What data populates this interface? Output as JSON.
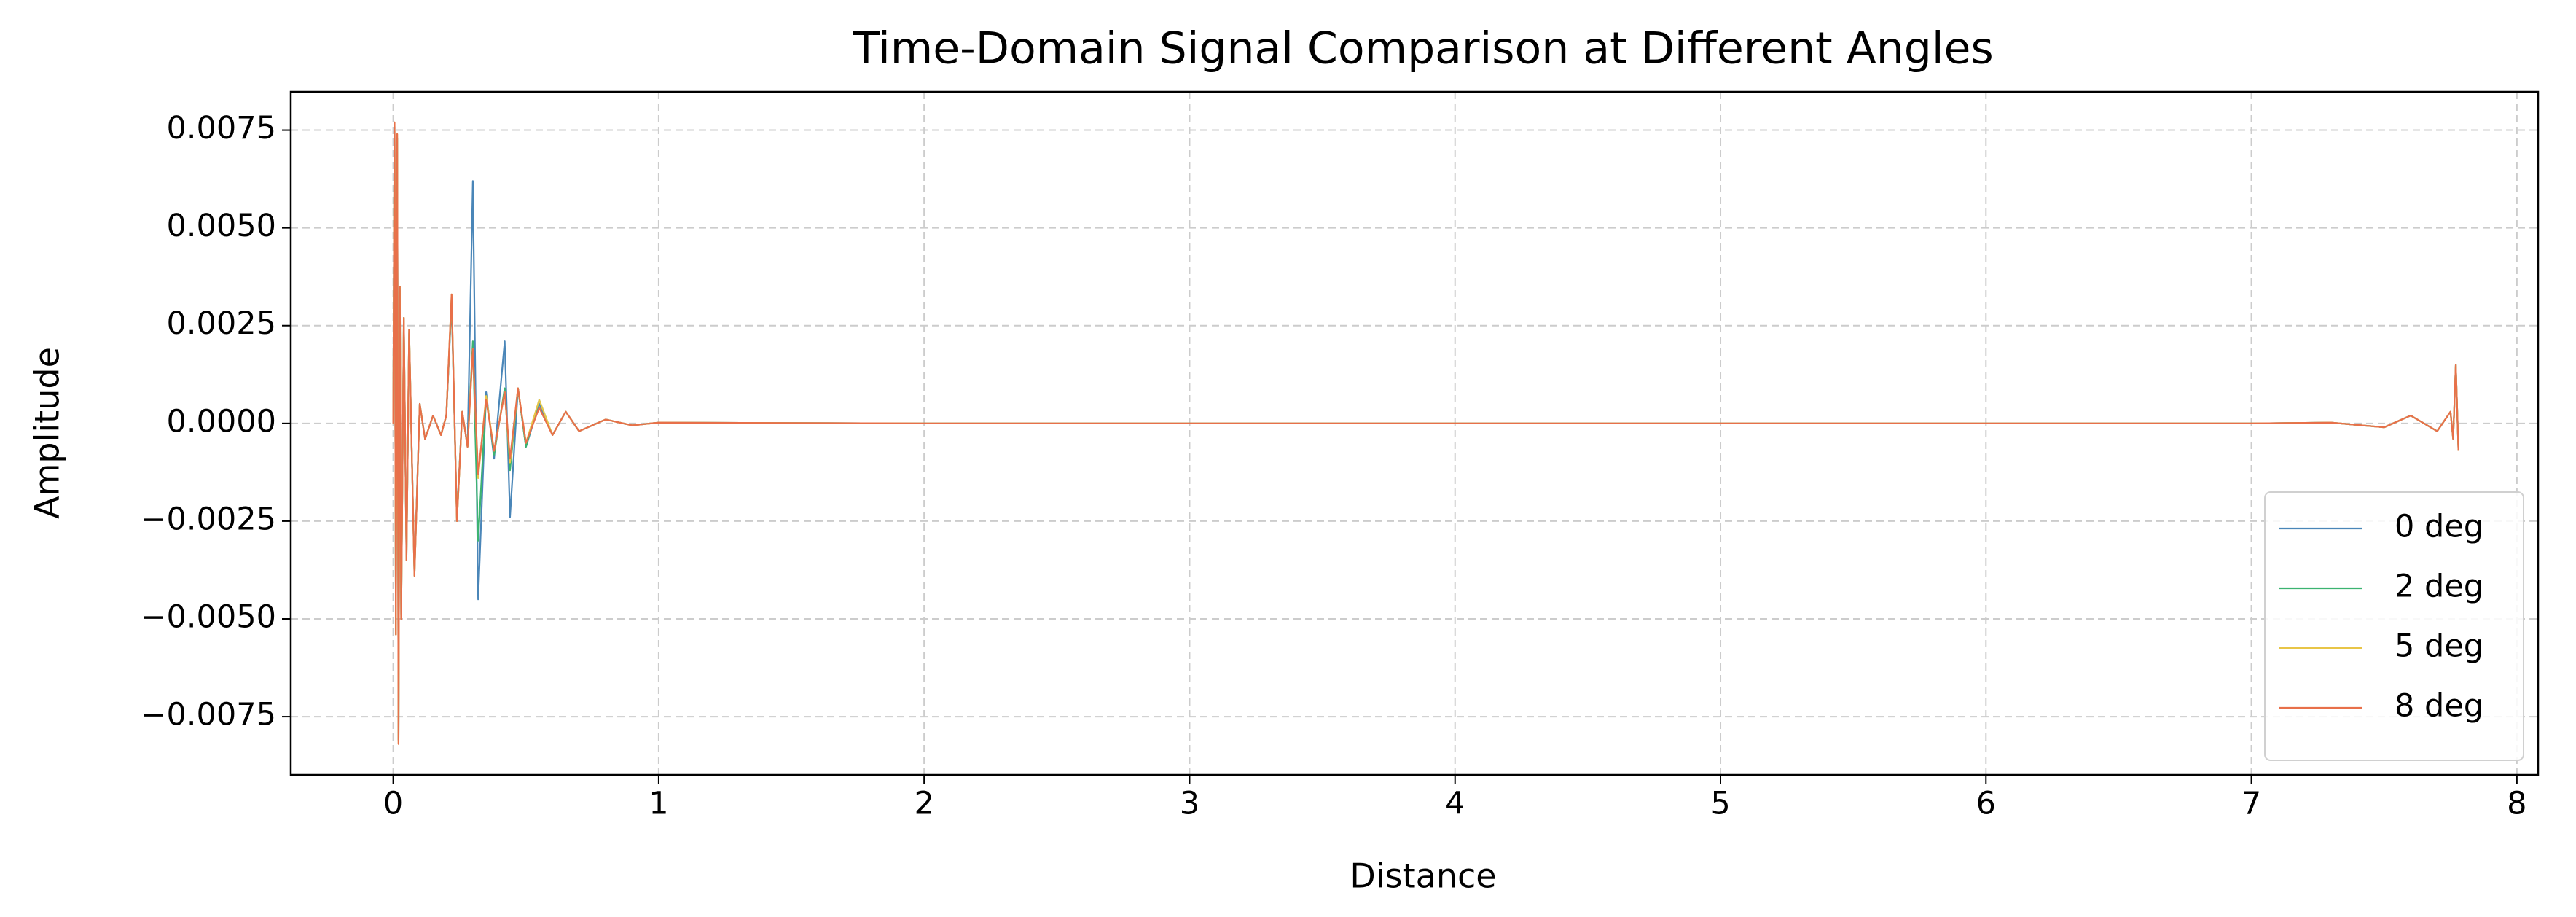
{
  "chart_data": {
    "type": "line",
    "title": "Time-Domain Signal Comparison at Different Angles",
    "x_label": "Distance",
    "y_label": "Amplitude",
    "x": [
      0,
      0.005,
      0.01,
      0.015,
      0.02,
      0.025,
      0.03,
      0.04,
      0.05,
      0.06,
      0.08,
      0.1,
      0.12,
      0.15,
      0.18,
      0.2,
      0.22,
      0.24,
      0.26,
      0.28,
      0.3,
      0.32,
      0.35,
      0.38,
      0.42,
      0.44,
      0.47,
      0.5,
      0.55,
      0.6,
      0.65,
      0.7,
      0.8,
      0.9,
      1.0,
      1.5,
      2,
      3,
      4,
      5,
      6,
      7,
      7.3,
      7.5,
      7.6,
      7.7,
      7.75,
      7.76,
      7.77,
      7.78
    ],
    "series": [
      {
        "name": "0 deg",
        "color": "#4a86b8",
        "values": [
          0,
          0.0076,
          -0.0053,
          0.0073,
          -0.0081,
          0.0034,
          -0.0049,
          0.0026,
          -0.0034,
          0.0023,
          -0.0038,
          0.0005,
          -0.0004,
          0.0002,
          -0.0003,
          0.0002,
          0.0031,
          -0.0024,
          0.0003,
          -0.0006,
          0.0062,
          -0.0045,
          0.0008,
          -0.0009,
          0.0021,
          -0.0024,
          0.0009,
          -0.0006,
          0.0005,
          -0.0003,
          0.0003,
          -0.0002,
          0.0001,
          -5e-05,
          2e-05,
          1e-05,
          0,
          0,
          0,
          0,
          0,
          0,
          2e-05,
          -0.0001,
          0.0002,
          -0.0002,
          0.0003,
          -0.0004,
          0.0015,
          -0.0007
        ]
      },
      {
        "name": "2 deg",
        "color": "#3cb371",
        "values": [
          0,
          0.0076,
          -0.0054,
          0.0073,
          -0.0081,
          0.0035,
          -0.005,
          0.0027,
          -0.0035,
          0.0024,
          -0.0039,
          0.0005,
          -0.0004,
          0.0002,
          -0.0003,
          0.0002,
          0.0032,
          -0.0025,
          0.0003,
          -0.0006,
          0.0021,
          -0.003,
          0.0007,
          -0.0008,
          0.0009,
          -0.0012,
          0.0009,
          -0.0006,
          0.0006,
          -0.0003,
          0.0003,
          -0.0002,
          0.0001,
          -5e-05,
          2e-05,
          1e-05,
          0,
          0,
          0,
          0,
          0,
          0,
          2e-05,
          -0.0001,
          0.0002,
          -0.0002,
          0.0003,
          -0.0004,
          0.0015,
          -0.0007
        ]
      },
      {
        "name": "5 deg",
        "color": "#e8c547",
        "values": [
          0,
          0.0077,
          -0.0054,
          0.0074,
          -0.0082,
          0.0035,
          -0.005,
          0.0027,
          -0.0035,
          0.0024,
          -0.0039,
          0.0005,
          -0.0004,
          0.0002,
          -0.0003,
          0.0002,
          0.0033,
          -0.0025,
          0.0003,
          -0.0006,
          0.0019,
          -0.0014,
          0.0007,
          -0.0007,
          0.0008,
          -0.001,
          0.0009,
          -0.0005,
          0.0006,
          -0.0003,
          0.0003,
          -0.0002,
          0.0001,
          -5e-05,
          2e-05,
          1e-05,
          0,
          0,
          0,
          0,
          0,
          0,
          2e-05,
          -0.0001,
          0.0002,
          -0.0002,
          0.0003,
          -0.0004,
          0.0015,
          -0.0007
        ]
      },
      {
        "name": "8 deg",
        "color": "#e8704a",
        "values": [
          0,
          0.0077,
          -0.0054,
          0.0074,
          -0.0082,
          0.0035,
          -0.005,
          0.0027,
          -0.0035,
          0.0024,
          -0.0039,
          0.0005,
          -0.0004,
          0.0002,
          -0.0003,
          0.0002,
          0.0033,
          -0.0025,
          0.0003,
          -0.0006,
          0.0019,
          -0.0013,
          0.0006,
          -0.0007,
          0.0008,
          -0.0009,
          0.0009,
          -0.0005,
          0.0004,
          -0.0003,
          0.0003,
          -0.0002,
          0.0001,
          -5e-05,
          2e-05,
          1e-05,
          0,
          0,
          0,
          0,
          0,
          0,
          2e-05,
          -0.0001,
          0.0002,
          -0.0002,
          0.0003,
          -0.0004,
          0.0015,
          -0.0007
        ]
      }
    ],
    "xlim": [
      -0.386,
      8.08
    ],
    "ylim": [
      -0.00899,
      0.00848
    ],
    "xticks": [
      0,
      1,
      2,
      3,
      4,
      5,
      6,
      7,
      8
    ],
    "yticks": [
      {
        "value": -0.0075,
        "label": "−0.0075"
      },
      {
        "value": -0.005,
        "label": "−0.0050"
      },
      {
        "value": -0.0025,
        "label": "−0.0025"
      },
      {
        "value": 0,
        "label": "0.0000"
      },
      {
        "value": 0.0025,
        "label": "0.0025"
      },
      {
        "value": 0.005,
        "label": "0.0050"
      },
      {
        "value": 0.0075,
        "label": "0.0075"
      }
    ],
    "grid": true,
    "legend": "lower right"
  }
}
